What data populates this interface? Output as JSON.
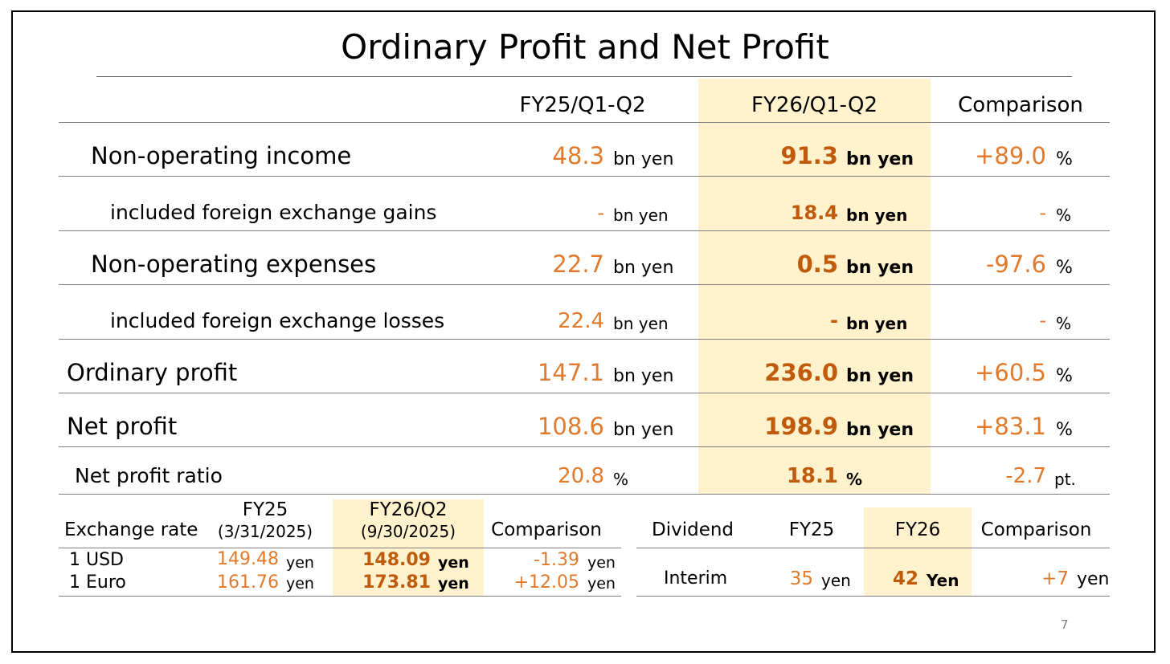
{
  "title": "Ordinary Profit and Net Profit",
  "colors": {
    "accent_number": "#E07A2C",
    "bold_number": "#C05A0C",
    "highlight": "#FFF2CC"
  },
  "main_table": {
    "headers": {
      "prev": "FY25/Q1-Q2",
      "curr": "FY26/Q1-Q2",
      "comparison": "Comparison"
    },
    "rows": [
      {
        "label": "Non-operating income",
        "prev": "48.3",
        "prev_unit": "bn yen",
        "curr": "91.3",
        "curr_unit": "bn yen",
        "comp": "+89.0",
        "comp_unit": "%"
      },
      {
        "label": "included foreign exchange gains",
        "prev": "-",
        "prev_unit": "bn yen",
        "curr": "18.4",
        "curr_unit": "bn yen",
        "comp": "-",
        "comp_unit": "%"
      },
      {
        "label": "Non-operating expenses",
        "prev": "22.7",
        "prev_unit": "bn yen",
        "curr": "0.5",
        "curr_unit": "bn yen",
        "comp": "-97.6",
        "comp_unit": "%"
      },
      {
        "label": "included foreign exchange losses",
        "prev": "22.4",
        "prev_unit": "bn yen",
        "curr": "-",
        "curr_unit": "bn yen",
        "comp": "-",
        "comp_unit": "%"
      },
      {
        "label": "Ordinary profit",
        "prev": "147.1",
        "prev_unit": "bn yen",
        "curr": "236.0",
        "curr_unit": "bn yen",
        "comp": "+60.5",
        "comp_unit": "%"
      },
      {
        "label": "Net profit",
        "prev": "108.6",
        "prev_unit": "bn yen",
        "curr": "198.9",
        "curr_unit": "bn yen",
        "comp": "+83.1",
        "comp_unit": "%"
      },
      {
        "label": "Net profit ratio",
        "prev": "20.8",
        "prev_unit": "%",
        "curr": "18.1",
        "curr_unit": "%",
        "comp": "-2.7",
        "comp_unit": "pt."
      }
    ]
  },
  "exchange": {
    "label": "Exchange rate",
    "prev_header": "FY25",
    "prev_date": "(3/31/2025)",
    "curr_header": "FY26/Q2",
    "curr_date": "(9/30/2025)",
    "comparison": "Comparison",
    "rows": [
      {
        "label": "1 USD",
        "prev": "149.48",
        "prev_unit": "yen",
        "curr": "148.09",
        "curr_unit": "yen",
        "comp": "-1.39",
        "comp_unit": "yen"
      },
      {
        "label": "1 Euro",
        "prev": "161.76",
        "prev_unit": "yen",
        "curr": "173.81",
        "curr_unit": "yen",
        "comp": "+12.05",
        "comp_unit": "yen"
      }
    ]
  },
  "dividend": {
    "label": "Dividend",
    "prev_header": "FY25",
    "curr_header": "FY26",
    "comparison": "Comparison",
    "row": {
      "label": "Interim",
      "prev": "35",
      "prev_unit": "yen",
      "curr": "42",
      "curr_unit": "Yen",
      "comp": "+7",
      "comp_unit": "yen"
    }
  },
  "page_number": "7"
}
